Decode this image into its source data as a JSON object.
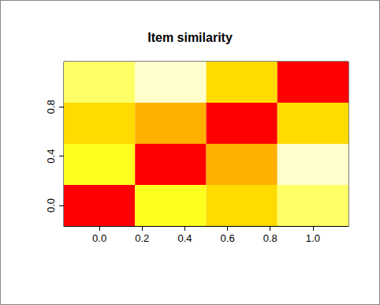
{
  "chart_data": {
    "type": "heatmap",
    "title": "Item similarity",
    "x": [
      0,
      0.3333,
      0.6667,
      1
    ],
    "y": [
      0,
      0.3333,
      0.6667,
      1
    ],
    "z": [
      [
        1.0,
        0.7,
        0.8,
        0.6
      ],
      [
        0.7,
        1.0,
        0.9,
        0.5
      ],
      [
        0.8,
        0.9,
        1.0,
        0.8
      ],
      [
        0.6,
        0.5,
        0.8,
        1.0
      ]
    ],
    "zlim": [
      0.5,
      1.0
    ],
    "color_scale": [
      "#FFFFCC",
      "#FFFF66",
      "#FFFF20",
      "#FFDB00",
      "#FFB000",
      "#FF0000"
    ],
    "xlim": [
      -0.1667,
      1.1667
    ],
    "ylim": [
      -0.1667,
      1.1667
    ],
    "xticks": [
      {
        "value": 0,
        "label": "0.0"
      },
      0.2,
      0.4,
      0.6,
      0.8,
      {
        "value": 1,
        "label": "1.0"
      }
    ],
    "yticks": [
      {
        "value": 0,
        "label": "0.0"
      },
      0.4,
      0.8
    ],
    "grid": false
  }
}
